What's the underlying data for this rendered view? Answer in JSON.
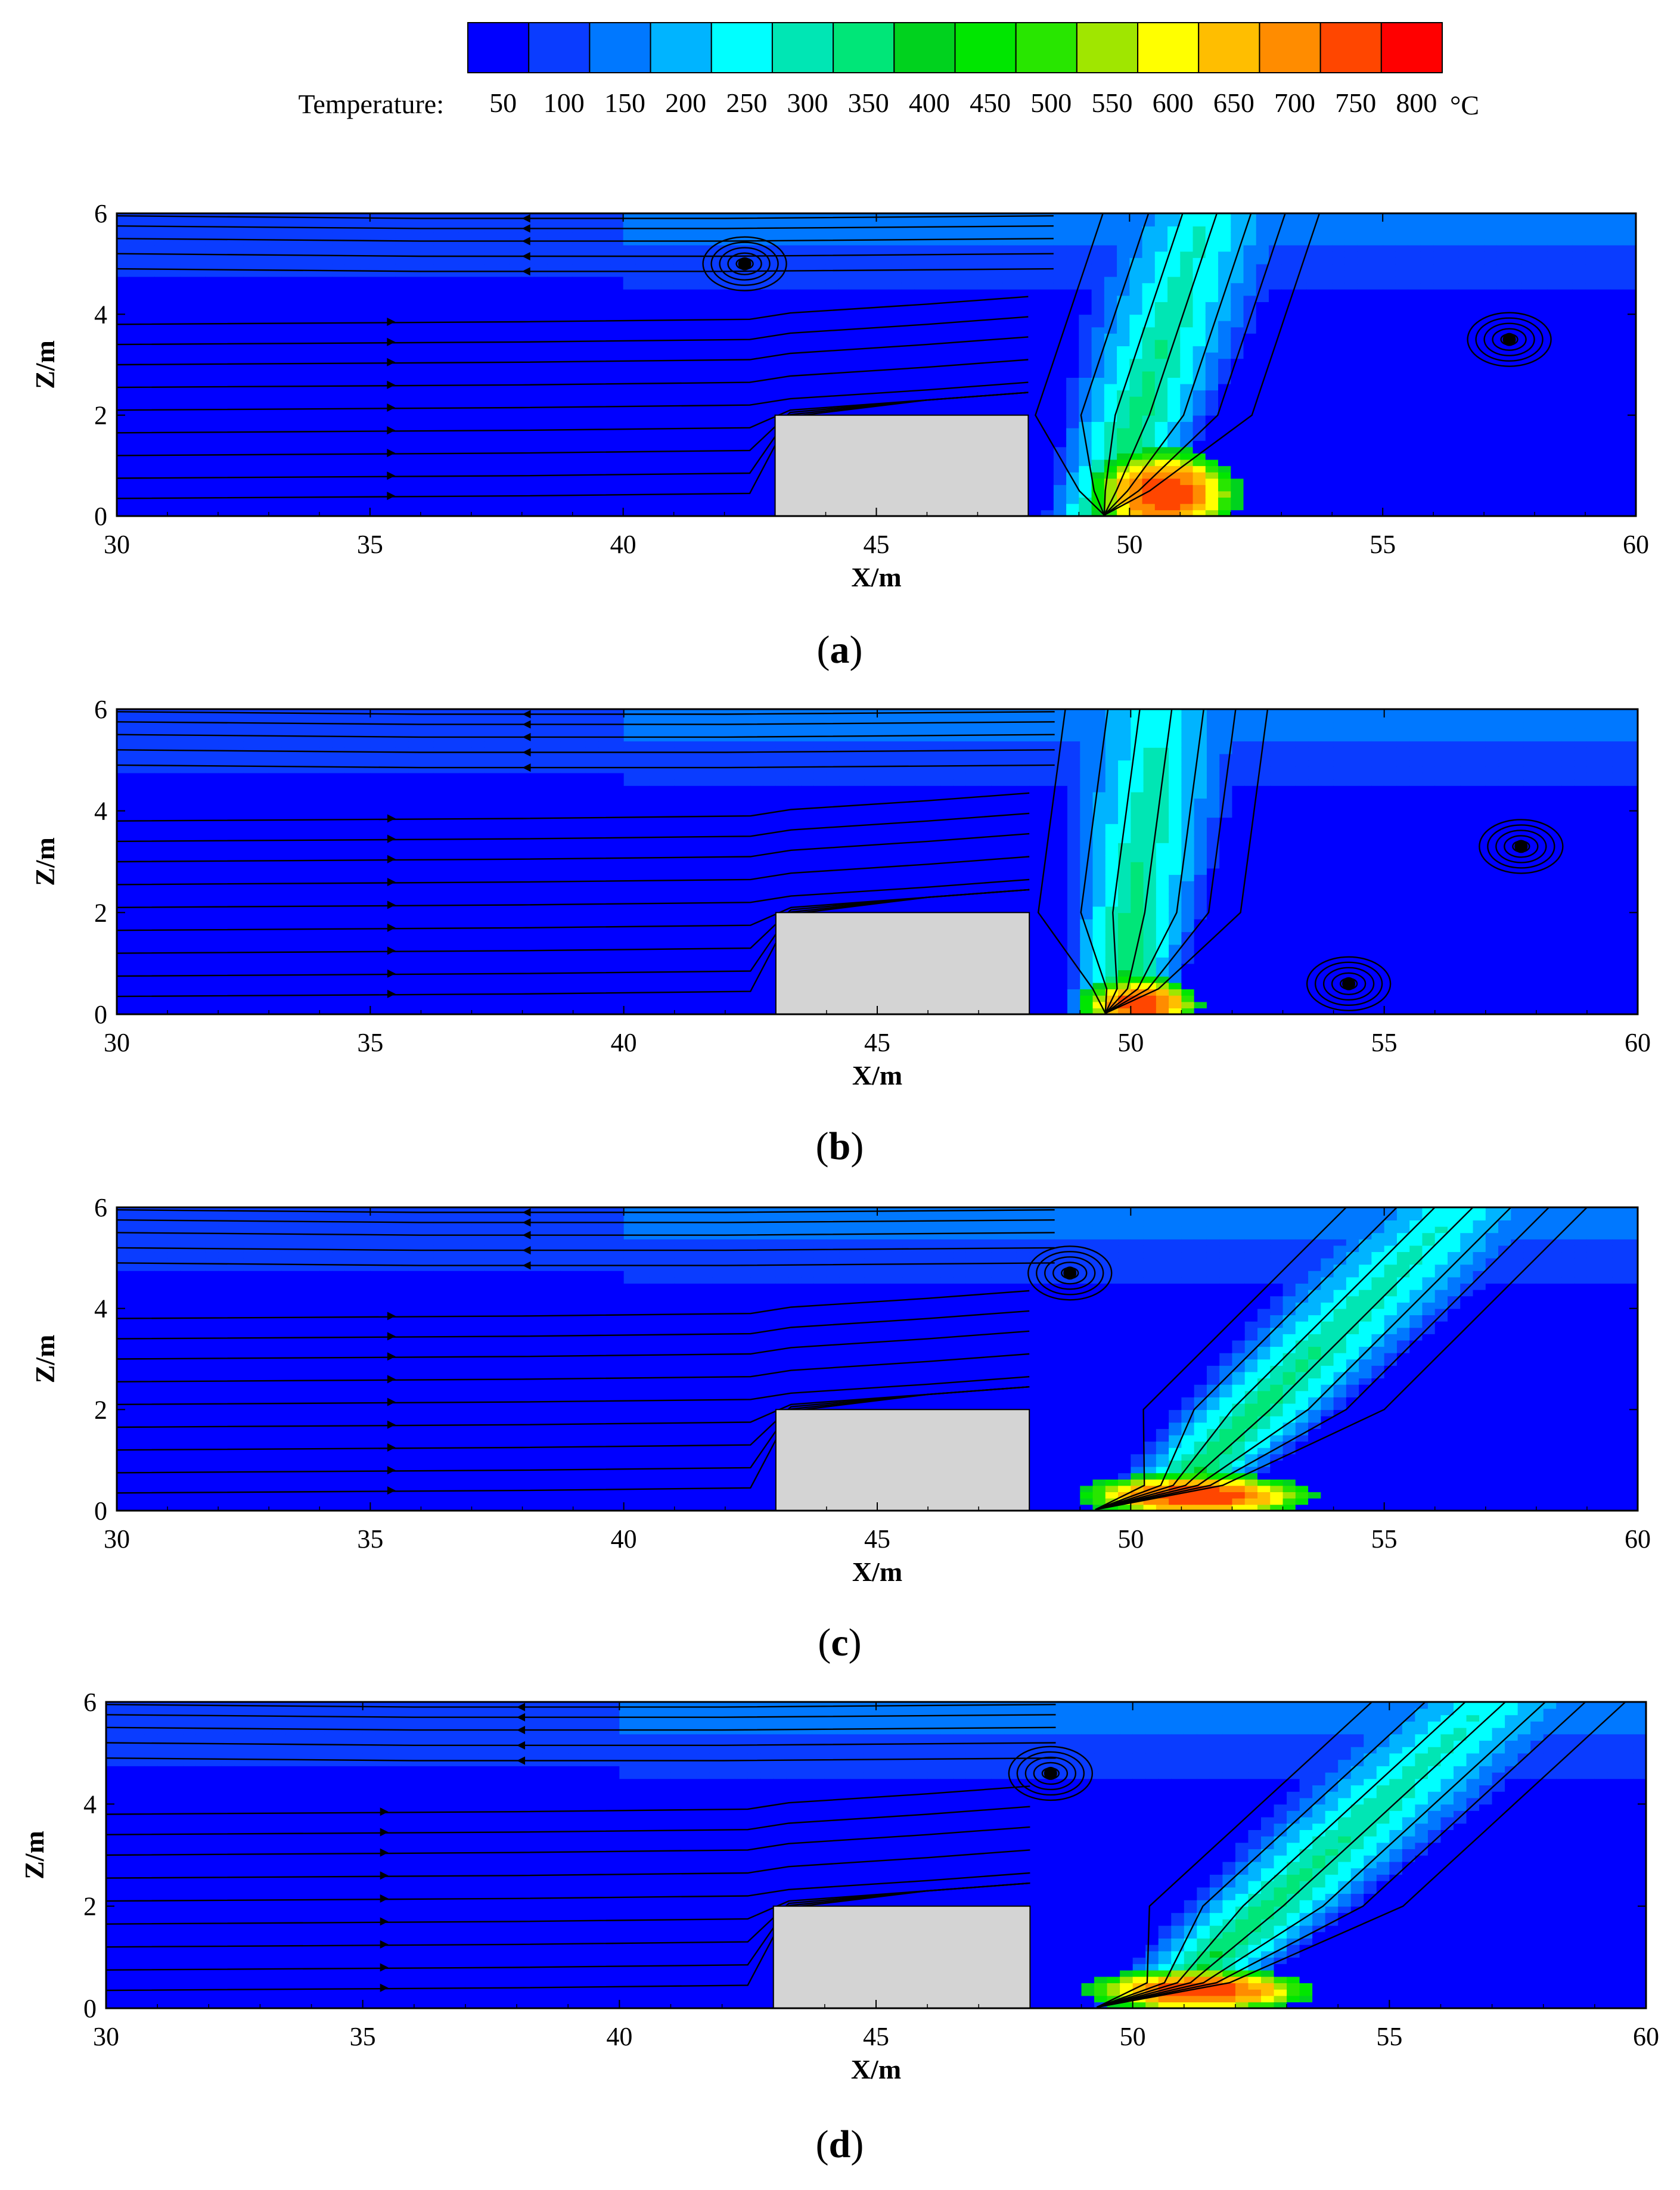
{
  "chart_data": [
    {
      "type": "heatmap",
      "panel": "(a)",
      "xlabel": "X/m",
      "ylabel": "Z/m",
      "xlim": [
        30,
        60
      ],
      "ylim": [
        0,
        6
      ],
      "xticks": [
        30,
        35,
        40,
        45,
        50,
        55,
        60
      ],
      "yticks": [
        0,
        2,
        4,
        6
      ],
      "obstacle": {
        "x": [
          43,
          48
        ],
        "z": [
          0,
          2
        ]
      },
      "fire_source_x": 49.5,
      "hot_core": {
        "x": 50.7,
        "z": 0.45,
        "rx": 1.5,
        "rz": 0.9
      },
      "plume": {
        "x_base": 49.5,
        "x_top": 51.5,
        "width": 4.5,
        "peak_temperature": 800
      },
      "vortices": [
        {
          "x": 42.4,
          "z": 5.0
        },
        {
          "x": 57.5,
          "z": 3.5
        }
      ],
      "background_temperature": 50,
      "upper_layer_temperature": 150
    },
    {
      "type": "heatmap",
      "panel": "(b)",
      "xlabel": "X/m",
      "ylabel": "Z/m",
      "xlim": [
        30,
        60
      ],
      "ylim": [
        0,
        6
      ],
      "xticks": [
        30,
        35,
        40,
        45,
        50,
        55,
        60
      ],
      "yticks": [
        0,
        2,
        4,
        6
      ],
      "obstacle": {
        "x": [
          43,
          48
        ],
        "z": [
          0,
          2
        ]
      },
      "fire_source_x": 49.5,
      "hot_core": {
        "x": 50.2,
        "z": 0.2,
        "rx": 1.2,
        "rz": 0.55
      },
      "plume": {
        "x_base": 49.8,
        "x_top": 50.6,
        "width": 4.2,
        "peak_temperature": 800
      },
      "vortices": [
        {
          "x": 54.3,
          "z": 0.6
        },
        {
          "x": 57.7,
          "z": 3.3
        }
      ],
      "background_temperature": 50,
      "upper_layer_temperature": 150
    },
    {
      "type": "heatmap",
      "panel": "(c)",
      "xlabel": "X/m",
      "ylabel": "Z/m",
      "xlim": [
        30,
        60
      ],
      "ylim": [
        0,
        6
      ],
      "xticks": [
        30,
        35,
        40,
        45,
        50,
        55,
        60
      ],
      "yticks": [
        0,
        2,
        4,
        6
      ],
      "obstacle": {
        "x": [
          43,
          48
        ],
        "z": [
          0,
          2
        ]
      },
      "fire_source_x": 49.3,
      "hot_core": {
        "x": 51.3,
        "z": 0.3,
        "rx": 2.4,
        "rz": 0.45
      },
      "plume": {
        "x_base": 50.5,
        "x_top": 56.5,
        "width": 5.0,
        "peak_temperature": 800
      },
      "vortices": [
        {
          "x": 48.8,
          "z": 4.7
        }
      ],
      "background_temperature": 50,
      "upper_layer_temperature": 150
    },
    {
      "type": "heatmap",
      "panel": "(d)",
      "xlabel": "X/m",
      "ylabel": "Z/m",
      "xlim": [
        30,
        60
      ],
      "ylim": [
        0,
        6
      ],
      "xticks": [
        30,
        35,
        40,
        45,
        50,
        55,
        60
      ],
      "yticks": [
        0,
        2,
        4,
        6
      ],
      "obstacle": {
        "x": [
          43,
          48
        ],
        "z": [
          0,
          2
        ]
      },
      "fire_source_x": 49.3,
      "hot_core": {
        "x": 51.3,
        "z": 0.35,
        "rx": 2.3,
        "rz": 0.45
      },
      "plume": {
        "x_base": 50.5,
        "x_top": 57.0,
        "width": 5.2,
        "peak_temperature": 800
      },
      "vortices": [
        {
          "x": 48.4,
          "z": 4.6
        }
      ],
      "background_temperature": 50,
      "upper_layer_temperature": 150
    }
  ],
  "legend": {
    "title": "Temperature:",
    "unit": "°C",
    "levels": [
      50,
      100,
      150,
      200,
      250,
      300,
      350,
      400,
      450,
      500,
      550,
      600,
      650,
      700,
      750,
      800
    ],
    "level_labels": [
      "50",
      "100",
      "150",
      "200",
      "250",
      "300",
      "350",
      "400",
      "450",
      "500",
      "550",
      "600",
      "650",
      "700",
      "750",
      "800"
    ],
    "colors": [
      "#0000ff",
      "#0a3cff",
      "#0078ff",
      "#00b4ff",
      "#00ffff",
      "#00e6b4",
      "#00e678",
      "#00d21e",
      "#00e600",
      "#28e600",
      "#a0e600",
      "#ffff00",
      "#ffbe00",
      "#ff8c00",
      "#ff4600",
      "#ff0000"
    ]
  },
  "colors": {
    "obstacle": "#d4d4d4",
    "streamline": "#000000"
  }
}
